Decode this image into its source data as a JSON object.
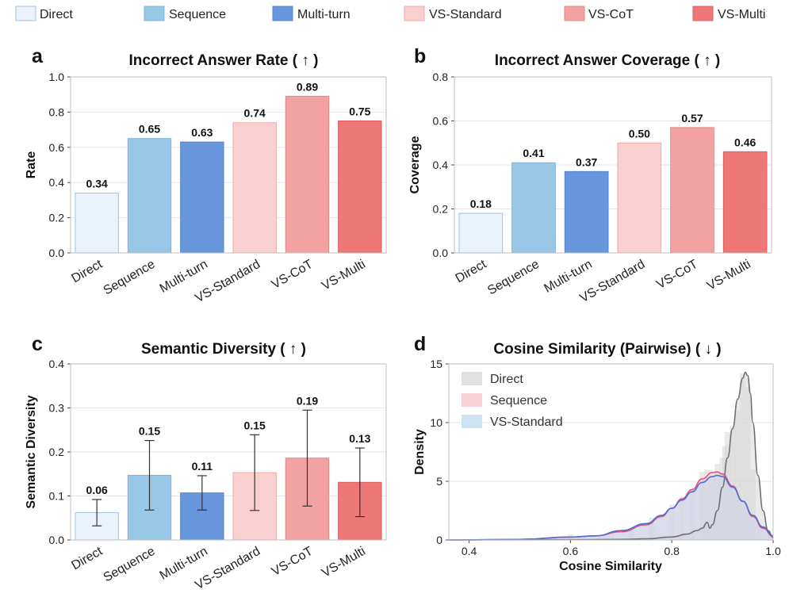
{
  "legend": {
    "items": [
      {
        "label": "Direct",
        "fill": "#eaf3fb",
        "stroke": "#9cc3e4"
      },
      {
        "label": "Sequence",
        "fill": "#98c8e6",
        "stroke": "#7fb5da"
      },
      {
        "label": "Multi-turn",
        "fill": "#6796dc",
        "stroke": "#5584cc"
      },
      {
        "label": "VS-Standard",
        "fill": "#f8d0d0",
        "stroke": "#eeaaaa"
      },
      {
        "label": "VS-CoT",
        "fill": "#f2a2a2",
        "stroke": "#e48888"
      },
      {
        "label": "VS-Multi",
        "fill": "#ee7878",
        "stroke": "#dc6060"
      }
    ]
  },
  "chart_data": [
    {
      "panel": "a",
      "type": "bar",
      "title": "Incorrect Answer Rate ( ↑ )",
      "ylabel": "Rate",
      "xlabel": "",
      "categories": [
        "Direct",
        "Sequence",
        "Multi-turn",
        "VS-Standard",
        "VS-CoT",
        "VS-Multi"
      ],
      "values": [
        0.34,
        0.65,
        0.63,
        0.74,
        0.89,
        0.75
      ],
      "value_labels": [
        "0.34",
        "0.65",
        "0.63",
        "0.74",
        "0.89",
        "0.75"
      ],
      "ylim": [
        0,
        1.0
      ],
      "yticks": [
        "0.0",
        "0.2",
        "0.4",
        "0.6",
        "0.8",
        "1.0"
      ]
    },
    {
      "panel": "b",
      "type": "bar",
      "title": "Incorrect Answer Coverage ( ↑ )",
      "ylabel": "Coverage",
      "xlabel": "",
      "categories": [
        "Direct",
        "Sequence",
        "Multi-turn",
        "VS-Standard",
        "VS-CoT",
        "VS-Multi"
      ],
      "values": [
        0.18,
        0.41,
        0.37,
        0.5,
        0.57,
        0.46
      ],
      "value_labels": [
        "0.18",
        "0.41",
        "0.37",
        "0.50",
        "0.57",
        "0.46"
      ],
      "ylim": [
        0,
        0.8
      ],
      "yticks": [
        "0.0",
        "0.2",
        "0.4",
        "0.6",
        "0.8"
      ]
    },
    {
      "panel": "c",
      "type": "bar",
      "title": "Semantic Diversity ( ↑ )",
      "ylabel": "Semantic Diversity",
      "xlabel": "",
      "categories": [
        "Direct",
        "Sequence",
        "Multi-turn",
        "VS-Standard",
        "VS-CoT",
        "VS-Multi"
      ],
      "values": [
        0.062,
        0.147,
        0.107,
        0.153,
        0.186,
        0.131
      ],
      "errors": [
        0.03,
        0.079,
        0.039,
        0.086,
        0.109,
        0.078
      ],
      "value_labels": [
        "0.06",
        "0.15",
        "0.11",
        "0.15",
        "0.19",
        "0.13"
      ],
      "ylim": [
        0,
        0.4
      ],
      "yticks": [
        "0.0",
        "0.1",
        "0.2",
        "0.3",
        "0.4"
      ]
    },
    {
      "panel": "d",
      "type": "area",
      "title": "Cosine Similarity (Pairwise) ( ↓ )",
      "xlabel": "Cosine Similarity",
      "ylabel": "Density",
      "xlim": [
        0.36,
        1.0
      ],
      "ylim": [
        0,
        15
      ],
      "xticks": [
        "0.4",
        "0.6",
        "0.8",
        "1.0"
      ],
      "yticks": [
        "0",
        "5",
        "10",
        "15"
      ],
      "series": [
        {
          "name": "Direct",
          "fill": "#d9d9d9",
          "line": "#707070",
          "x": [
            0.36,
            0.6,
            0.7,
            0.75,
            0.8,
            0.83,
            0.85,
            0.86,
            0.87,
            0.875,
            0.88,
            0.89,
            0.9,
            0.91,
            0.92,
            0.93,
            0.94,
            0.945,
            0.95,
            0.955,
            0.96,
            0.97,
            0.98,
            0.99,
            1.0
          ],
          "y": [
            0,
            0.02,
            0.05,
            0.1,
            0.25,
            0.5,
            0.8,
            1.0,
            1.5,
            1.0,
            1.3,
            2.5,
            4.5,
            7.0,
            9.5,
            12.0,
            13.8,
            14.3,
            14.0,
            12.5,
            10.0,
            5.5,
            2.5,
            0.8,
            0.2
          ]
        },
        {
          "name": "Sequence",
          "fill": "#f4c4cd",
          "line": "#e8507a",
          "x": [
            0.36,
            0.5,
            0.6,
            0.65,
            0.7,
            0.75,
            0.78,
            0.8,
            0.82,
            0.84,
            0.86,
            0.88,
            0.89,
            0.9,
            0.92,
            0.94,
            0.96,
            0.98,
            1.0
          ],
          "y": [
            0,
            0.05,
            0.25,
            0.35,
            0.7,
            1.3,
            2.0,
            2.7,
            3.5,
            4.3,
            5.2,
            5.75,
            5.8,
            5.6,
            4.6,
            3.3,
            2.0,
            1.0,
            0.3
          ]
        },
        {
          "name": "VS-Standard",
          "fill": "#c2dcee",
          "line": "#4a6fd8",
          "x": [
            0.36,
            0.5,
            0.6,
            0.65,
            0.7,
            0.75,
            0.78,
            0.8,
            0.82,
            0.84,
            0.86,
            0.88,
            0.89,
            0.9,
            0.92,
            0.94,
            0.96,
            0.98,
            1.0
          ],
          "y": [
            0,
            0.05,
            0.25,
            0.35,
            0.8,
            1.4,
            2.1,
            2.7,
            3.4,
            4.1,
            4.9,
            5.4,
            5.5,
            5.4,
            4.5,
            3.3,
            2.1,
            1.1,
            0.35
          ]
        }
      ],
      "histogram_bars": {
        "x": [
          0.6,
          0.68,
          0.72,
          0.76,
          0.8,
          0.82,
          0.84,
          0.86,
          0.87,
          0.88,
          0.89,
          0.9,
          0.905,
          0.91,
          0.92,
          0.93,
          0.94,
          0.95,
          0.96
        ],
        "y": [
          0.5,
          0.6,
          0.9,
          1.9,
          3.0,
          3.7,
          4.3,
          5.8,
          6.0,
          5.5,
          6.5,
          7.0,
          8.0,
          9.2,
          9.7,
          11.0,
          14.2,
          13.0,
          6.0
        ]
      }
    }
  ]
}
